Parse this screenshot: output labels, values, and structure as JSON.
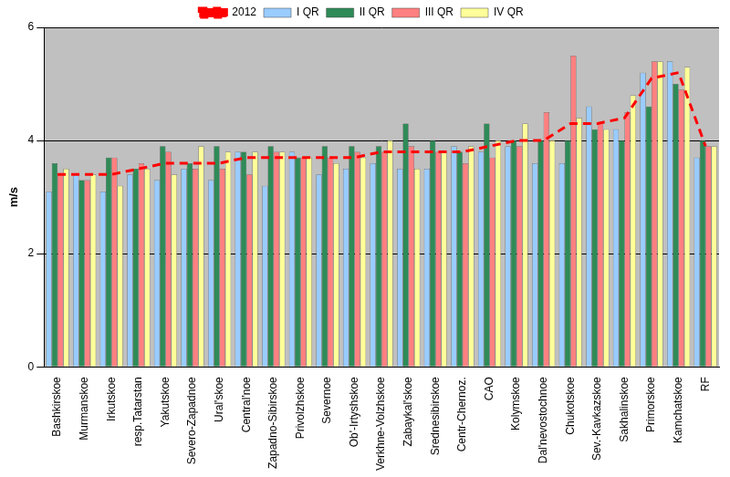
{
  "chart_data": {
    "type": "bar",
    "y_label": "m/s",
    "categories": [
      "Bashkirskoe",
      "Murmanskoe",
      "Irkutskoe",
      "resp.Tatarstan",
      "Yakutskoe",
      "Severo-Zapadnoe",
      "Ural'skoe",
      "Central'noe",
      "Zapadno-Sibirskoe",
      "Privolzhskoe",
      "Severnoe",
      "Ob'-Irtyshskoe",
      "Verkhne-Volzhskoe",
      "Zabaykal'skoe",
      "Srednesibirskoe",
      "Centr-Chernoz.",
      "CAO",
      "Kolymskoe",
      "Dal'nevostochnoe",
      "Chukotskoe",
      "Sev.-Kavkazskoe",
      "Sakhalinskoe",
      "Primorskoe",
      "Kamchatskoe",
      "RF"
    ],
    "series": [
      {
        "name": "I QR",
        "color": "#99ccff",
        "type": "bar",
        "values": [
          3.1,
          3.4,
          3.1,
          3.4,
          3.3,
          3.5,
          3.3,
          3.8,
          3.2,
          3.8,
          3.4,
          3.5,
          3.6,
          3.5,
          3.5,
          3.9,
          3.8,
          3.9,
          3.6,
          3.6,
          4.6,
          4.2,
          5.2,
          5.4,
          3.7
        ]
      },
      {
        "name": "II QR",
        "color": "#2e8b57",
        "type": "bar",
        "values": [
          3.6,
          3.3,
          3.7,
          3.5,
          3.9,
          3.6,
          3.9,
          3.8,
          3.9,
          3.7,
          3.9,
          3.9,
          3.9,
          4.3,
          4.0,
          3.8,
          4.3,
          4.0,
          4.0,
          4.0,
          4.2,
          4.0,
          4.6,
          5.0,
          4.0
        ]
      },
      {
        "name": "III QR",
        "color": "#ff8080",
        "type": "bar",
        "values": [
          3.4,
          3.3,
          3.7,
          3.6,
          3.8,
          3.5,
          3.5,
          3.4,
          3.8,
          3.7,
          3.7,
          3.8,
          3.8,
          3.9,
          3.8,
          3.6,
          3.7,
          3.9,
          4.5,
          5.5,
          4.3,
          4.5,
          5.4,
          4.9,
          3.9
        ]
      },
      {
        "name": "IV QR",
        "color": "#ffff99",
        "type": "bar",
        "values": [
          3.5,
          3.4,
          3.2,
          3.5,
          3.4,
          3.9,
          3.8,
          3.8,
          3.8,
          3.7,
          3.6,
          3.7,
          4.0,
          3.5,
          3.8,
          3.9,
          4.0,
          4.3,
          4.0,
          4.4,
          4.2,
          4.8,
          5.4,
          5.3,
          3.9
        ]
      },
      {
        "name": "2012",
        "color": "#ff0000",
        "type": "line",
        "line_style": "dashed",
        "values": [
          3.4,
          3.4,
          3.4,
          3.5,
          3.6,
          3.6,
          3.6,
          3.7,
          3.7,
          3.7,
          3.7,
          3.7,
          3.8,
          3.8,
          3.8,
          3.8,
          3.9,
          4.0,
          4.0,
          4.3,
          4.3,
          4.4,
          5.1,
          5.2,
          3.9
        ]
      }
    ],
    "ylim": [
      0,
      6
    ],
    "yticks": [
      0,
      2,
      4,
      6
    ],
    "grid": true,
    "legend": "top"
  }
}
